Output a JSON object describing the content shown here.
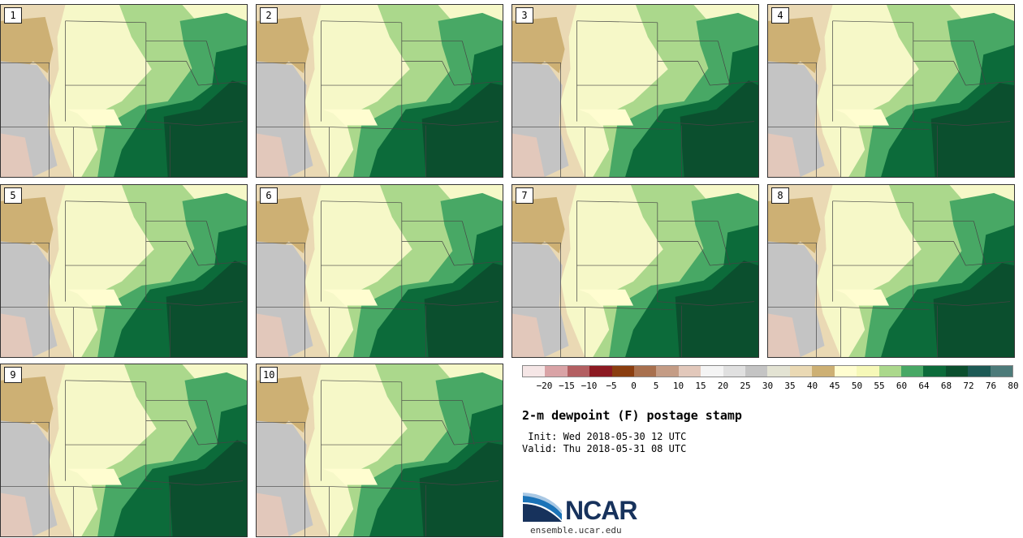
{
  "panels": [
    {
      "label": "1"
    },
    {
      "label": "2"
    },
    {
      "label": "3"
    },
    {
      "label": "4"
    },
    {
      "label": "5"
    },
    {
      "label": "6"
    },
    {
      "label": "7"
    },
    {
      "label": "8"
    },
    {
      "label": "9"
    },
    {
      "label": "10"
    }
  ],
  "colorbar": {
    "colors": [
      "#f5e6e6",
      "#d9a3a6",
      "#b35f62",
      "#8c1a22",
      "#8a3e10",
      "#a8704e",
      "#c49c85",
      "#e2c8bb",
      "#f4f4f4",
      "#e0e0e0",
      "#c4c4c4",
      "#e3e3d3",
      "#ead9b4",
      "#cdb074",
      "#fffdd0",
      "#f6f8b8",
      "#abd88c",
      "#48a865",
      "#0c6b3a",
      "#0b4f2e",
      "#1d5a55",
      "#4d7b7a"
    ],
    "ticks": [
      "−20",
      "−15",
      "−10",
      "−5",
      "0",
      "5",
      "10",
      "15",
      "20",
      "25",
      "30",
      "35",
      "40",
      "45",
      "50",
      "55",
      "60",
      "64",
      "68",
      "72",
      "76",
      "80"
    ]
  },
  "title": "2-m dewpoint (F) postage stamp",
  "init": " Init: Wed 2018-05-30 12 UTC",
  "valid": "Valid: Thu 2018-05-31 08 UTC",
  "logo": {
    "name": "NCAR",
    "url": "ensemble.ucar.edu"
  },
  "palette": {
    "dry_tan": "#cdb074",
    "dry_light": "#ead9b4",
    "gray": "#c4c4c4",
    "pink": "#e2c8bb",
    "pale_yellow": "#f6f8c8",
    "cream": "#fffdd0",
    "light_green": "#abd88c",
    "mid_green": "#48a865",
    "dark_green": "#0c6b3a",
    "darkest_green": "#0b4f2e"
  }
}
